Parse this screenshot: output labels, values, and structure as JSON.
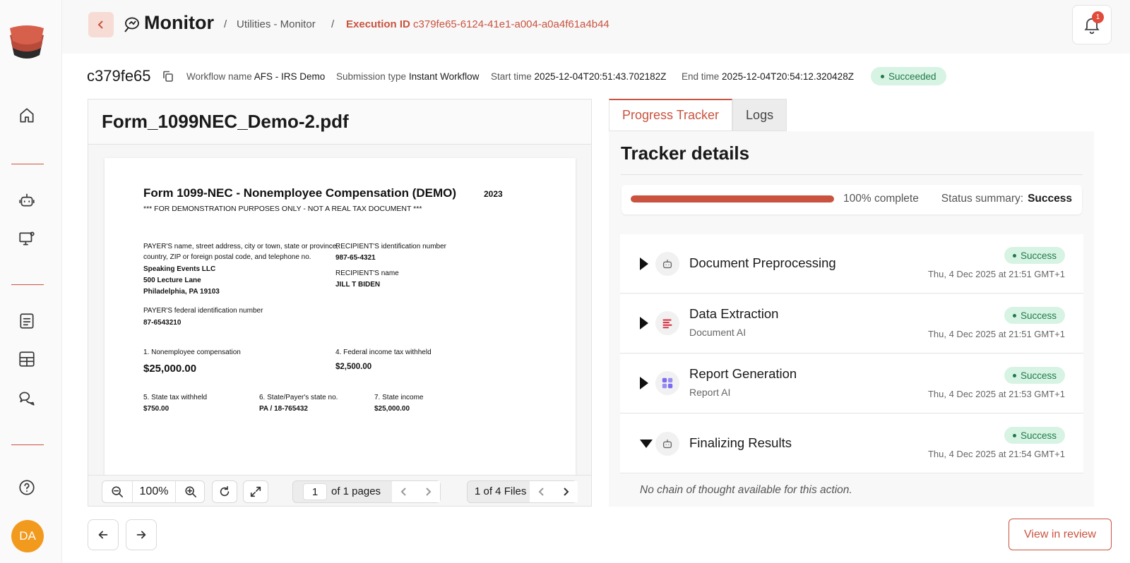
{
  "header": {
    "title": "Monitor",
    "breadcrumb_sep": "/",
    "breadcrumb_parent": "Utilities - Monitor",
    "breadcrumb_current_label": "Execution ID",
    "breadcrumb_current_value": "c379fe65-6124-41e1-a004-a0a4f61a4b44",
    "notification_count": "1"
  },
  "sidebar": {
    "avatar_initials": "DA",
    "items": [
      "home-icon",
      "bot-icon",
      "monitor-settings-icon",
      "document-icon",
      "table-icon",
      "chat-icon",
      "help-icon"
    ]
  },
  "execution": {
    "short_id": "c379fe65",
    "workflow_label": "Workflow name",
    "workflow_value": "AFS - IRS Demo",
    "submission_label": "Submission type",
    "submission_value": "Instant Workflow",
    "start_label": "Start time",
    "start_value": "2025-12-04T20:51:43.702182Z",
    "end_label": "End time",
    "end_value": "2025-12-04T20:54:12.320428Z",
    "status": "Succeeded"
  },
  "viewer": {
    "file_name": "Form_1099NEC_Demo-2.pdf",
    "zoom": "100%",
    "page_current": "1",
    "page_total_label": "of 1 pages",
    "files_label": "1 of 4 Files"
  },
  "pdf": {
    "title": "Form 1099-NEC - Nonemployee Compensation (DEMO)",
    "year": "2023",
    "disclaimer": "*** FOR DEMONSTRATION PURPOSES ONLY - NOT A REAL TAX DOCUMENT ***",
    "payer_label_1": "PAYER'S name, street address, city or town, state or province,",
    "payer_label_2": "country, ZIP or foreign postal code, and telephone no.",
    "payer_name": "Speaking Events LLC",
    "payer_street": "500 Lecture Lane",
    "payer_city": "Philadelphia, PA 19103",
    "recipient_id_label": "RECIPIENT'S identification number",
    "recipient_id": "987-65-4321",
    "recipient_name_label": "RECIPIENT'S name",
    "recipient_name": "JILL T BIDEN",
    "payer_fed_label": "PAYER'S federal identification number",
    "payer_fed_id": "87-6543210",
    "box1_label": "1. Nonemployee compensation",
    "box1_value": "$25,000.00",
    "box4_label": "4. Federal income tax withheld",
    "box4_value": "$2,500.00",
    "box5_label": "5. State tax withheld",
    "box5_value": "$750.00",
    "box6_label": "6. State/Payer's state no.",
    "box6_value": "PA / 18-765432",
    "box7_label": "7. State income",
    "box7_value": "$25,000.00"
  },
  "tabs": [
    {
      "label": "Progress Tracker",
      "active": true
    },
    {
      "label": "Logs",
      "active": false
    }
  ],
  "tracker": {
    "title": "Tracker details",
    "progress_percent": 100,
    "progress_label": "100% complete",
    "status_summary_label": "Status summary:",
    "status_summary_value": "Success",
    "steps": [
      {
        "name": "Document Preprocessing",
        "subtitle": "",
        "status": "Success",
        "time": "Thu, 4 Dec 2025 at 21:51 GMT+1",
        "icon": "bot-icon",
        "expanded": false
      },
      {
        "name": "Data Extraction",
        "subtitle": "Document AI",
        "status": "Success",
        "time": "Thu, 4 Dec 2025 at 21:51 GMT+1",
        "icon": "document-ai-icon",
        "expanded": false
      },
      {
        "name": "Report Generation",
        "subtitle": "Report AI",
        "status": "Success",
        "time": "Thu, 4 Dec 2025 at 21:53 GMT+1",
        "icon": "report-ai-icon",
        "expanded": false
      },
      {
        "name": "Finalizing Results",
        "subtitle": "",
        "status": "Success",
        "time": "Thu, 4 Dec 2025 at 21:54 GMT+1",
        "icon": "bot-icon",
        "expanded": true
      }
    ],
    "no_chain_text": "No chain of thought available for this action."
  },
  "footer": {
    "review_button": "View in review"
  },
  "colors": {
    "accent": "#c9533f",
    "success_bg": "#d7f3e3",
    "success_text": "#1f7a4a",
    "avatar": "#f29a1e"
  }
}
